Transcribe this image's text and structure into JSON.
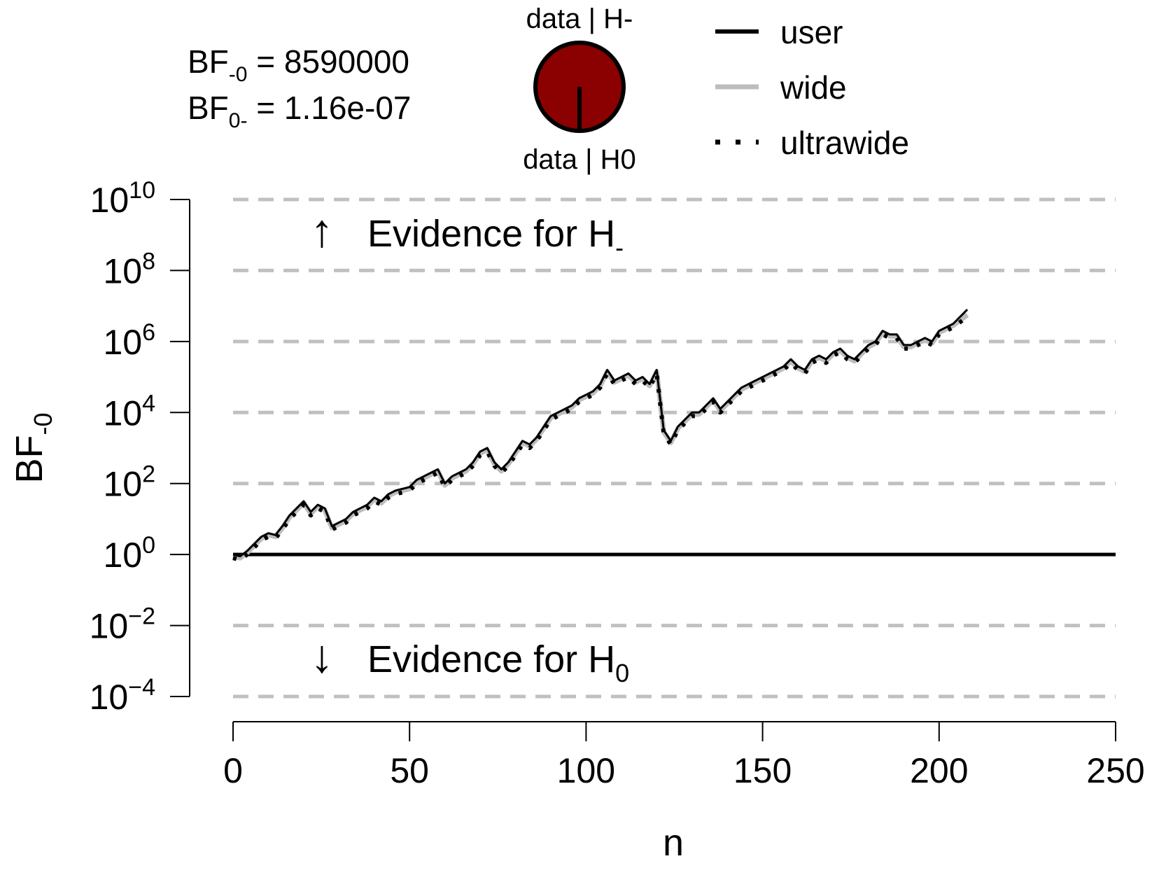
{
  "header": {
    "bf_line1": {
      "base": "BF",
      "sub": "-0",
      "rest": " = 8590000"
    },
    "bf_line2": {
      "base": "BF",
      "sub": "0-",
      "rest": " = 1.16e-07"
    },
    "pie": {
      "top_label": "data | H-",
      "bottom_label": "data | H0",
      "fill_color": "#8b0000",
      "h_minus_fraction": 1.0
    }
  },
  "legend": {
    "position": "top-right",
    "items": [
      {
        "label": "user",
        "style": "solid",
        "color": "#000000"
      },
      {
        "label": "wide",
        "style": "solid",
        "color": "#bdbdbd"
      },
      {
        "label": "ultrawide",
        "style": "dotted",
        "color": "#000000"
      }
    ]
  },
  "annotations": {
    "up": {
      "arrow": "↑",
      "text": "Evidence for H",
      "sub": "-"
    },
    "down": {
      "arrow": "↓",
      "text": "Evidence for H",
      "sub": "0"
    }
  },
  "chart_data": {
    "type": "line",
    "xlabel": "n",
    "ylabel": {
      "base": "BF",
      "sub": "-0"
    },
    "xlim": [
      0,
      250
    ],
    "x_ticks": [
      "0",
      "50",
      "100",
      "150",
      "200",
      "250"
    ],
    "y_scale": "log10",
    "ylim_log10": [
      -4,
      10
    ],
    "y_ticks": [
      {
        "base": "10",
        "exp": "10"
      },
      {
        "base": "10",
        "exp": "8"
      },
      {
        "base": "10",
        "exp": "6"
      },
      {
        "base": "10",
        "exp": "4"
      },
      {
        "base": "10",
        "exp": "2"
      },
      {
        "base": "10",
        "exp": "0"
      },
      {
        "base": "10",
        "exp": "−2"
      },
      {
        "base": "10",
        "exp": "−4"
      }
    ],
    "grid_log10": [
      10,
      8,
      6,
      4,
      2,
      -2,
      -4
    ],
    "reference_line_y": 1,
    "x": [
      0,
      2,
      4,
      6,
      8,
      10,
      12,
      14,
      16,
      18,
      20,
      22,
      24,
      26,
      28,
      30,
      32,
      34,
      36,
      38,
      40,
      42,
      44,
      46,
      48,
      50,
      52,
      54,
      56,
      58,
      60,
      62,
      64,
      66,
      68,
      70,
      72,
      74,
      76,
      78,
      80,
      82,
      84,
      86,
      88,
      90,
      92,
      94,
      96,
      98,
      100,
      102,
      104,
      106,
      108,
      110,
      112,
      114,
      116,
      118,
      120,
      122,
      124,
      126,
      128,
      130,
      132,
      134,
      136,
      138,
      140,
      142,
      144,
      146,
      148,
      150,
      152,
      154,
      156,
      158,
      160,
      162,
      164,
      166,
      168,
      170,
      172,
      174,
      176,
      178,
      180,
      182,
      184,
      186,
      188,
      190,
      192,
      194,
      196,
      198,
      200,
      202,
      204,
      206,
      208
    ],
    "series": [
      {
        "name": "user",
        "log10_values": [
          0,
          -0.05,
          0.1,
          0.3,
          0.5,
          0.6,
          0.55,
          0.8,
          1.1,
          1.3,
          1.5,
          1.2,
          1.4,
          1.3,
          0.8,
          0.9,
          1.0,
          1.2,
          1.3,
          1.4,
          1.6,
          1.5,
          1.7,
          1.8,
          1.85,
          1.9,
          2.1,
          2.2,
          2.3,
          2.4,
          2.0,
          2.2,
          2.3,
          2.4,
          2.6,
          2.9,
          3.0,
          2.6,
          2.4,
          2.6,
          2.9,
          3.2,
          3.1,
          3.3,
          3.6,
          3.9,
          4.0,
          4.1,
          4.2,
          4.4,
          4.5,
          4.6,
          4.8,
          5.2,
          4.9,
          5.0,
          5.1,
          4.9,
          5.0,
          4.8,
          5.2,
          3.5,
          3.2,
          3.6,
          3.8,
          4.0,
          4.0,
          4.2,
          4.4,
          4.1,
          4.3,
          4.5,
          4.7,
          4.8,
          4.9,
          5.0,
          5.1,
          5.2,
          5.3,
          5.5,
          5.3,
          5.2,
          5.5,
          5.6,
          5.5,
          5.7,
          5.8,
          5.6,
          5.5,
          5.7,
          5.9,
          6.0,
          6.3,
          6.2,
          6.2,
          5.9,
          5.9,
          6.0,
          6.1,
          6.0,
          6.3,
          6.4,
          6.5,
          6.7,
          6.9
        ]
      },
      {
        "name": "wide",
        "log10_values": [
          -0.05,
          -0.1,
          0.05,
          0.25,
          0.45,
          0.55,
          0.5,
          0.75,
          1.05,
          1.25,
          1.45,
          1.15,
          1.35,
          1.25,
          0.75,
          0.85,
          0.95,
          1.15,
          1.25,
          1.35,
          1.55,
          1.45,
          1.65,
          1.75,
          1.8,
          1.85,
          2.05,
          2.15,
          2.25,
          2.35,
          1.95,
          2.15,
          2.25,
          2.35,
          2.55,
          2.85,
          2.95,
          2.55,
          2.35,
          2.55,
          2.85,
          3.15,
          3.05,
          3.25,
          3.55,
          3.85,
          3.95,
          4.05,
          4.15,
          4.35,
          4.45,
          4.55,
          4.75,
          5.15,
          4.85,
          4.95,
          5.05,
          4.85,
          4.95,
          4.75,
          5.15,
          3.45,
          3.15,
          3.55,
          3.75,
          3.95,
          3.95,
          4.15,
          4.35,
          4.05,
          4.25,
          4.45,
          4.65,
          4.75,
          4.85,
          4.95,
          5.05,
          5.15,
          5.25,
          5.45,
          5.25,
          5.15,
          5.45,
          5.55,
          5.45,
          5.65,
          5.75,
          5.55,
          5.45,
          5.65,
          5.85,
          5.95,
          6.25,
          6.15,
          6.15,
          5.85,
          5.85,
          5.95,
          6.05,
          5.95,
          6.25,
          6.35,
          6.45,
          6.6,
          6.75
        ]
      },
      {
        "name": "ultrawide",
        "log10_values": [
          -0.1,
          -0.15,
          0.0,
          0.2,
          0.4,
          0.5,
          0.45,
          0.7,
          1.0,
          1.2,
          1.4,
          1.1,
          1.3,
          1.2,
          0.7,
          0.8,
          0.9,
          1.1,
          1.2,
          1.3,
          1.5,
          1.4,
          1.6,
          1.7,
          1.75,
          1.8,
          2.0,
          2.1,
          2.2,
          2.3,
          1.9,
          2.1,
          2.2,
          2.3,
          2.5,
          2.8,
          2.9,
          2.5,
          2.3,
          2.5,
          2.8,
          3.1,
          3.0,
          3.2,
          3.5,
          3.8,
          3.9,
          4.0,
          4.1,
          4.3,
          4.4,
          4.5,
          4.7,
          5.1,
          4.8,
          4.9,
          5.0,
          4.8,
          4.9,
          4.7,
          5.1,
          3.4,
          3.1,
          3.5,
          3.7,
          3.9,
          3.9,
          4.1,
          4.3,
          4.0,
          4.2,
          4.4,
          4.6,
          4.7,
          4.8,
          4.9,
          5.0,
          5.1,
          5.2,
          5.4,
          5.2,
          5.1,
          5.4,
          5.5,
          5.4,
          5.6,
          5.7,
          5.5,
          5.4,
          5.6,
          5.8,
          5.9,
          6.2,
          6.1,
          6.1,
          5.8,
          5.8,
          5.9,
          6.0,
          5.9,
          6.2,
          6.3,
          6.4,
          6.55,
          6.7
        ]
      }
    ]
  }
}
